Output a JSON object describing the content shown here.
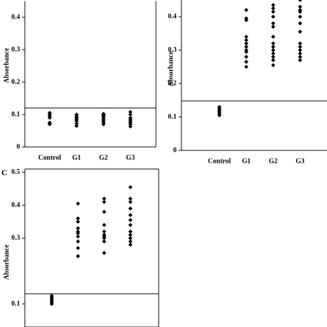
{
  "chart_data": [
    {
      "type": "strip",
      "ylabel": "Absorbance",
      "categories": [
        "Control",
        "G1",
        "G2",
        "G3"
      ],
      "values": [
        [
          0.07,
          0.072,
          0.075,
          0.09,
          0.095,
          0.1,
          0.105
        ],
        [
          0.065,
          0.072,
          0.08,
          0.085,
          0.09,
          0.095,
          0.1
        ],
        [
          0.07,
          0.075,
          0.08,
          0.085,
          0.09,
          0.095,
          0.098,
          0.1,
          0.102
        ],
        [
          0.063,
          0.07,
          0.075,
          0.08,
          0.085,
          0.09,
          0.1,
          0.108
        ]
      ],
      "cutoff": 0.12,
      "color": "#000000",
      "ylim": [
        0,
        0.45
      ],
      "yticks": [
        0,
        0.1,
        0.2,
        0.3,
        0.4
      ]
    },
    {
      "type": "strip",
      "ylabel": "Absorbance",
      "categories": [
        "Control",
        "G1",
        "G2",
        "G3"
      ],
      "values": [
        [
          0.105,
          0.11,
          0.115,
          0.12,
          0.125,
          0.13
        ],
        [
          0.25,
          0.265,
          0.28,
          0.295,
          0.3,
          0.31,
          0.32,
          0.33,
          0.34,
          0.39,
          0.395,
          0.42
        ],
        [
          0.255,
          0.27,
          0.28,
          0.29,
          0.3,
          0.31,
          0.32,
          0.34,
          0.37,
          0.38,
          0.4,
          0.415,
          0.425,
          0.435
        ],
        [
          0.27,
          0.28,
          0.29,
          0.3,
          0.31,
          0.32,
          0.355,
          0.38,
          0.4,
          0.415,
          0.42,
          0.43,
          0.45
        ]
      ],
      "cutoff": 0.148,
      "color": "#000000",
      "ylim": [
        0,
        0.45
      ],
      "yticks": [
        0,
        0.1,
        0.2,
        0.3,
        0.4
      ]
    },
    {
      "type": "strip",
      "panel_label": "C",
      "ylabel": "Absorbance",
      "values": [
        [
          0.1,
          0.105,
          0.11,
          0.115,
          0.12,
          0.125
        ],
        [
          0.245,
          0.27,
          0.29,
          0.305,
          0.315,
          0.32,
          0.33,
          0.35,
          0.36,
          0.405
        ],
        [
          0.255,
          0.29,
          0.3,
          0.305,
          0.31,
          0.32,
          0.34,
          0.38,
          0.41,
          0.42
        ],
        [
          0.28,
          0.29,
          0.3,
          0.31,
          0.32,
          0.34,
          0.355,
          0.37,
          0.39,
          0.41,
          0.42,
          0.455
        ]
      ],
      "cutoff": 0.131,
      "color": "#000000",
      "ylim": [
        0.03,
        0.51
      ],
      "yticks": [
        0.1,
        0.3,
        0.4,
        0.5
      ]
    }
  ]
}
